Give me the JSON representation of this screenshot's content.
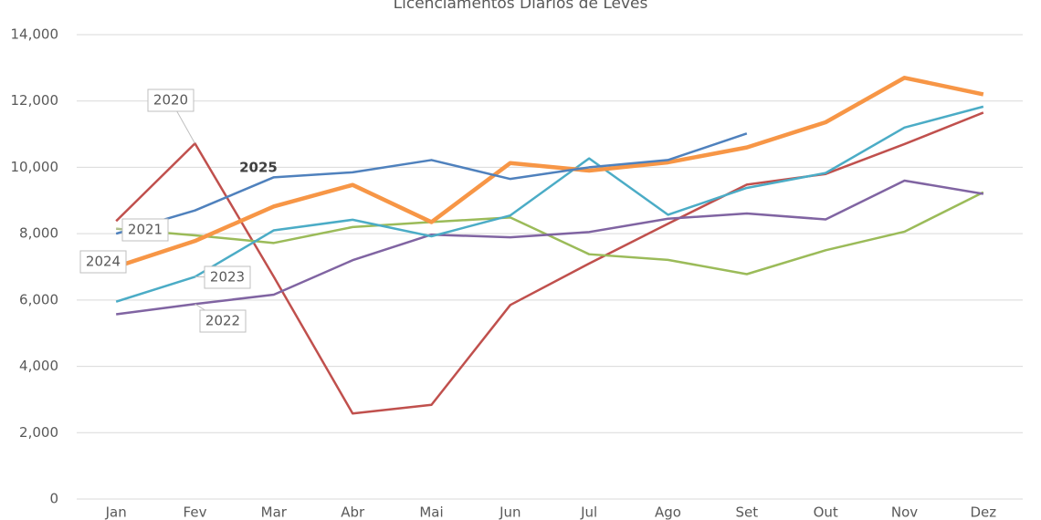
{
  "chart_data": {
    "type": "line",
    "title": "Licenciamentos Diários de Leves",
    "categories": [
      "Jan",
      "Fev",
      "Mar",
      "Abr",
      "Mai",
      "Jun",
      "Jul",
      "Ago",
      "Set",
      "Out",
      "Nov",
      "Dez"
    ],
    "series": [
      {
        "name": "2020",
        "color": "#c0504d",
        "values": [
          8380,
          10720,
          6700,
          2580,
          2840,
          5850,
          7100,
          8300,
          9480,
          9800,
          10700,
          11650
        ]
      },
      {
        "name": "2021",
        "color": "#9bbb59",
        "values": [
          8150,
          7950,
          7720,
          8200,
          8350,
          8490,
          7380,
          7210,
          6780,
          7500,
          8060,
          9250
        ]
      },
      {
        "name": "2022",
        "color": "#8064a2",
        "values": [
          5570,
          5880,
          6160,
          7200,
          7970,
          7890,
          8050,
          8450,
          8610,
          8430,
          9600,
          9200
        ]
      },
      {
        "name": "2023",
        "color": "#4bacc6",
        "values": [
          5950,
          6700,
          8100,
          8420,
          7920,
          8550,
          10270,
          8570,
          9380,
          9830,
          11200,
          11830
        ]
      },
      {
        "name": "2024",
        "color": "#f79646",
        "values": [
          7000,
          7780,
          8820,
          9470,
          8350,
          10130,
          9900,
          10150,
          10600,
          11360,
          12700,
          12200
        ]
      },
      {
        "name": "2025",
        "color": "#4f81bd",
        "values": [
          8000,
          8700,
          9700,
          9850,
          10220,
          9650,
          10000,
          10220,
          11020,
          null,
          null,
          null
        ]
      }
    ],
    "ylim": [
      0,
      14000
    ],
    "yticks": [
      0,
      {
        "value": 2000,
        "label": "2,000"
      },
      {
        "value": 4000,
        "label": "4,000"
      },
      {
        "value": 6000,
        "label": "6,000"
      },
      {
        "value": 8000,
        "label": "8,000"
      },
      {
        "value": 10000,
        "label": "10,000"
      },
      {
        "value": 12000,
        "label": "12,000"
      },
      {
        "value": 14000,
        "label": "14,000"
      }
    ],
    "grid": true
  }
}
